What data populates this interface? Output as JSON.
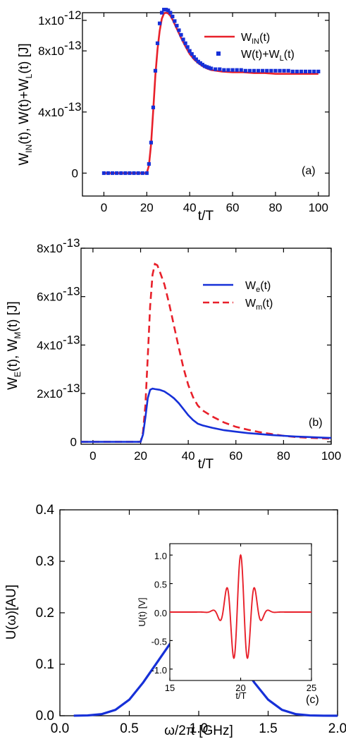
{
  "chart_data": [
    {
      "type": "line",
      "panel_label": "(a)",
      "xlabel": "t/T",
      "ylabel": "W_IN(t), W(t)+W_L(t) [J]",
      "xlim": [
        -10,
        105
      ],
      "ylim": [
        -1.5e-13,
        1.05e-12
      ],
      "x_ticks": [
        0,
        20,
        40,
        60,
        80,
        100
      ],
      "y_ticks": [
        {
          "v": 0,
          "label": "0",
          "exp": ""
        },
        {
          "v": 4e-13,
          "label": "4x10",
          "exp": "-13"
        },
        {
          "v": 8e-13,
          "label": "8x10",
          "exp": "-13"
        },
        {
          "v": 1e-12,
          "label": "1x10",
          "exp": "-12"
        }
      ],
      "legend_position": "top-right",
      "colors": {
        "w_in": "#e8202a",
        "w_sum": "#1630d8"
      },
      "series": [
        {
          "name": "W_IN(t)",
          "label_main": "W",
          "label_sub": "IN",
          "label_tail": "(t)",
          "style": "solid",
          "x": [
            0,
            20,
            21,
            22,
            23,
            24,
            25,
            26,
            27,
            28,
            29,
            30,
            31,
            32,
            33,
            34,
            35,
            36,
            38,
            40,
            42,
            44,
            46,
            48,
            50,
            55,
            60,
            65,
            70,
            75,
            80,
            85,
            90,
            95,
            100
          ],
          "y": [
            0,
            0,
            5e-14,
            1.9e-13,
            4.1e-13,
            6.4e-13,
            8.1e-13,
            9.3e-13,
            1.01e-12,
            1.045e-12,
            1.05e-12,
            1.045e-12,
            1.03e-12,
            1.005e-12,
            9.75e-13,
            9.45e-13,
            9.15e-13,
            8.85e-13,
            8.3e-13,
            7.8e-13,
            7.45e-13,
            7.2e-13,
            7e-13,
            6.85e-13,
            6.75e-13,
            6.65e-13,
            6.6e-13,
            6.6e-13,
            6.55e-13,
            6.55e-13,
            6.5e-13,
            6.5e-13,
            6.5e-13,
            6.5e-13,
            6.5e-13
          ]
        },
        {
          "name": "W(t)+W_L(t)",
          "label_main": "W(t)+W",
          "label_sub": "L",
          "label_tail": "(t)",
          "style": "square-markers",
          "x": [
            0,
            2,
            4,
            6,
            8,
            10,
            12,
            14,
            16,
            18,
            20,
            21,
            22,
            23,
            24,
            25,
            26,
            27,
            28,
            29,
            30,
            31,
            32,
            33,
            34,
            35,
            36,
            37,
            38,
            39,
            40,
            41,
            42,
            43,
            44,
            45,
            46,
            47,
            48,
            49,
            50,
            52,
            54,
            56,
            58,
            60,
            62,
            64,
            66,
            68,
            70,
            72,
            74,
            76,
            78,
            80,
            82,
            84,
            86,
            88,
            90,
            92,
            94,
            96,
            98,
            100
          ],
          "y": [
            0,
            0,
            0,
            0,
            0,
            0,
            0,
            0,
            0,
            0,
            0,
            6e-14,
            2e-13,
            4.3e-13,
            6.7e-13,
            8.5e-13,
            9.8e-13,
            1.05e-12,
            1.07e-12,
            1.07e-12,
            1.065e-12,
            1.05e-12,
            1.025e-12,
            9.95e-13,
            9.65e-13,
            9.35e-13,
            9.05e-13,
            8.75e-13,
            8.5e-13,
            8.25e-13,
            8e-13,
            7.8e-13,
            7.6e-13,
            7.45e-13,
            7.3e-13,
            7.2e-13,
            7.1e-13,
            7e-13,
            6.95e-13,
            6.9e-13,
            6.85e-13,
            6.8e-13,
            6.8e-13,
            6.75e-13,
            6.75e-13,
            6.75e-13,
            6.75e-13,
            6.75e-13,
            6.7e-13,
            6.7e-13,
            6.7e-13,
            6.7e-13,
            6.7e-13,
            6.7e-13,
            6.7e-13,
            6.7e-13,
            6.7e-13,
            6.7e-13,
            6.7e-13,
            6.65e-13,
            6.65e-13,
            6.65e-13,
            6.65e-13,
            6.65e-13,
            6.65e-13,
            6.65e-13
          ]
        }
      ]
    },
    {
      "type": "line",
      "panel_label": "(b)",
      "xlabel": "t/T",
      "ylabel": "W_E(t), W_M(t) [J]",
      "xlim": [
        -5,
        100
      ],
      "ylim": [
        -1e-14,
        8e-13
      ],
      "x_ticks": [
        0,
        20,
        40,
        60,
        80,
        100
      ],
      "y_ticks": [
        {
          "v": 0,
          "label": "0",
          "exp": ""
        },
        {
          "v": 2e-13,
          "label": "2x10",
          "exp": "-13"
        },
        {
          "v": 4e-13,
          "label": "4x10",
          "exp": "-13"
        },
        {
          "v": 6e-13,
          "label": "6x10",
          "exp": "-13"
        },
        {
          "v": 8e-13,
          "label": "8x10",
          "exp": "-13"
        }
      ],
      "legend_position": "top-right",
      "colors": {
        "we": "#1630d8",
        "wm": "#e8202a"
      },
      "series": [
        {
          "name": "W_e(t)",
          "label_main": "W",
          "label_sub": "e",
          "label_tail": "(t)",
          "style": "solid",
          "x": [
            -5,
            20,
            21,
            22,
            23,
            24,
            25,
            26,
            28,
            30,
            32,
            34,
            36,
            38,
            40,
            42,
            44,
            46,
            50,
            55,
            60,
            65,
            70,
            75,
            80,
            85,
            90,
            95,
            100
          ],
          "y": [
            0,
            0,
            3e-14,
            1e-13,
            1.8e-13,
            2.15e-13,
            2.2e-13,
            2.18e-13,
            2.15e-13,
            2.08e-13,
            1.95e-13,
            1.8e-13,
            1.6e-13,
            1.35e-13,
            1.1e-13,
            9e-14,
            7.5e-14,
            6.8e-14,
            5.8e-14,
            4.8e-14,
            4.2e-14,
            3.6e-14,
            3.2e-14,
            2.8e-14,
            2.5e-14,
            2.2e-14,
            2e-14,
            1.8e-14,
            1.6e-14
          ]
        },
        {
          "name": "W_m(t)",
          "label_main": "W",
          "label_sub": "m",
          "label_tail": "(t)",
          "style": "dashed",
          "x": [
            -5,
            20,
            21,
            22,
            23,
            24,
            25,
            26,
            27,
            28,
            30,
            32,
            34,
            36,
            38,
            40,
            42,
            44,
            46,
            50,
            55,
            60,
            65,
            70,
            75,
            80,
            85,
            90,
            95,
            100
          ],
          "y": [
            0,
            0,
            4e-14,
            1.5e-13,
            3.5e-13,
            5.6e-13,
            6.9e-13,
            7.35e-13,
            7.3e-13,
            7.05e-13,
            6.5e-13,
            5.7e-13,
            4.8e-13,
            3.9e-13,
            3.05e-13,
            2.35e-13,
            1.85e-13,
            1.5e-13,
            1.3e-13,
            1.05e-13,
            8e-14,
            6.2e-14,
            5e-14,
            4e-14,
            3.2e-14,
            2.5e-14,
            2e-14,
            1.7e-14,
            1.5e-14,
            1.3e-14
          ]
        }
      ]
    },
    {
      "type": "line",
      "panel_label": "(c)",
      "xlabel": "ω/2π [GHz]",
      "ylabel": "U(ω)[AU]",
      "xlim": [
        0,
        2
      ],
      "ylim": [
        0,
        0.4
      ],
      "x_ticks": [
        0.0,
        0.5,
        1.0,
        1.5,
        2.0
      ],
      "x_tick_labels": [
        "0.0",
        "0.5",
        "1.0",
        "1.5",
        "2.0"
      ],
      "y_ticks": [
        0.0,
        0.1,
        0.2,
        0.3,
        0.4
      ],
      "y_tick_labels": [
        "0.0",
        "0.1",
        "0.2",
        "0.3",
        "0.4"
      ],
      "colors": {
        "spectrum": "#1630d8"
      },
      "series": [
        {
          "style": "solid",
          "x": [
            0.1,
            0.2,
            0.3,
            0.4,
            0.5,
            0.6,
            0.7,
            0.8,
            0.9,
            1.0,
            1.1,
            1.2,
            1.3,
            1.4,
            1.5,
            1.6,
            1.7,
            1.8,
            1.9,
            2.0
          ],
          "y": [
            0.0001,
            0.0006,
            0.0031,
            0.0114,
            0.0312,
            0.0646,
            0.1035,
            0.1425,
            0.1654,
            0.17,
            0.1654,
            0.1425,
            0.1035,
            0.0646,
            0.0312,
            0.0114,
            0.0031,
            0.0006,
            0.0001,
            0.0
          ]
        }
      ],
      "inset": {
        "type": "line",
        "xlabel": "t/T",
        "ylabel": "U(t) [V]",
        "xlim": [
          15,
          25
        ],
        "ylim": [
          -1.2,
          1.2
        ],
        "x_ticks": [
          15,
          20,
          25
        ],
        "x_tick_labels": [
          "15",
          "20",
          "25"
        ],
        "y_ticks": [
          -1.0,
          -0.5,
          0.0,
          0.5,
          1.0
        ],
        "y_tick_labels": [
          "-1.0",
          "-0.5",
          "0.0",
          "0.5",
          "1.0"
        ],
        "colors": {
          "signal": "#e8202a"
        },
        "envelope": {
          "center": 20,
          "sigma": 0.75,
          "period": 1,
          "amplitude": 1.0,
          "t_start": 15,
          "t_end": 25
        }
      }
    }
  ]
}
